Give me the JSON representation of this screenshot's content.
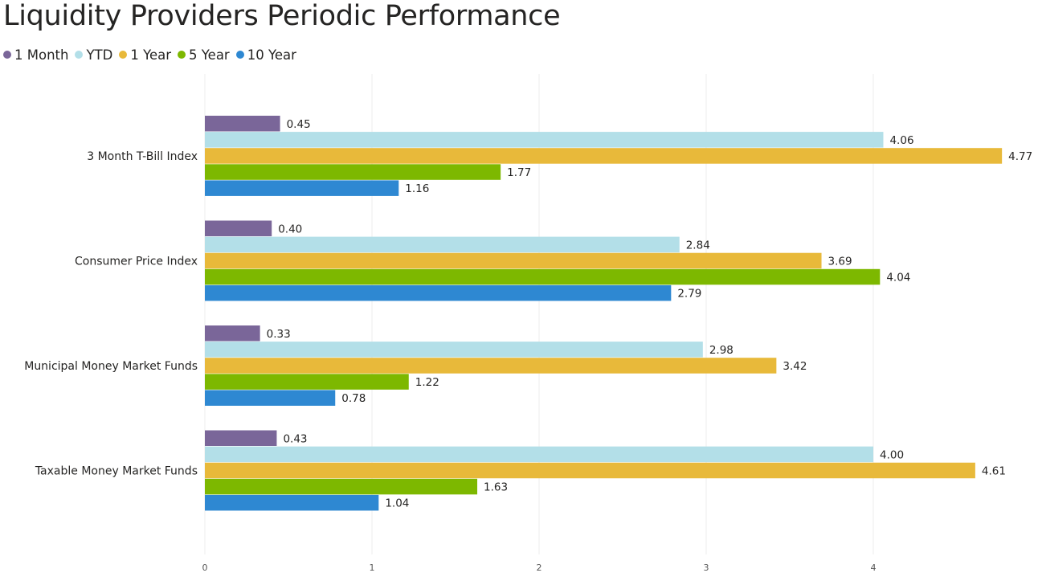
{
  "chart_data": {
    "type": "bar",
    "orientation": "horizontal",
    "title": "Liquidity Providers Periodic Performance",
    "categories": [
      "3 Month T-Bill Index",
      "Consumer Price Index",
      "Municipal Money Market Funds",
      "Taxable Money Market Funds"
    ],
    "series": [
      {
        "name": "1 Month",
        "color": "#7a6699",
        "values": [
          0.45,
          0.4,
          0.33,
          0.43
        ]
      },
      {
        "name": "YTD",
        "color": "#b3dfe8",
        "values": [
          4.06,
          2.84,
          2.98,
          4.0
        ]
      },
      {
        "name": "1 Year",
        "color": "#e8b93a",
        "values": [
          4.77,
          3.69,
          3.42,
          4.61
        ]
      },
      {
        "name": "5 Year",
        "color": "#7db800",
        "values": [
          1.77,
          4.04,
          1.22,
          1.63
        ]
      },
      {
        "name": "10 Year",
        "color": "#2e88d2",
        "values": [
          1.16,
          2.79,
          0.78,
          1.04
        ]
      }
    ],
    "x_ticks": [
      "0",
      "1",
      "2",
      "3",
      "4"
    ],
    "xlim": [
      0,
      4.77
    ],
    "grid": true,
    "legend_position": "top-left"
  }
}
